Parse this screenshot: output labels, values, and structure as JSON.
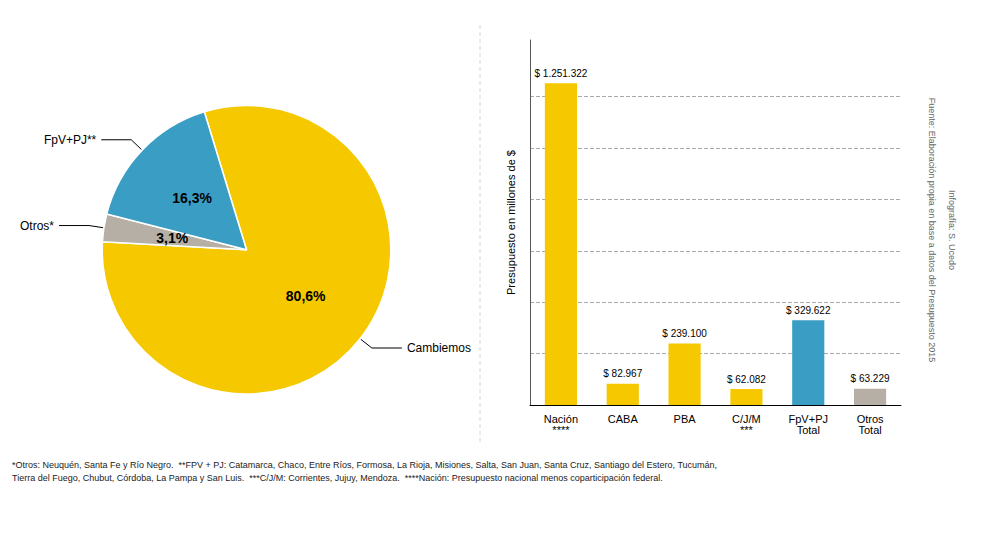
{
  "chart_data": [
    {
      "type": "pie",
      "labels": [
        "Cambiemos",
        "Otros*",
        "FpV+PJ**"
      ],
      "values": [
        80.6,
        3.1,
        16.3
      ],
      "value_labels": [
        "80,6%",
        "3,1%",
        "16,3%"
      ],
      "colors": [
        "#F5C800",
        "#B5AFA5",
        "#3A9DC4"
      ],
      "data_labels": true
    },
    {
      "type": "bar",
      "categories": [
        "Nación\n****",
        "CABA",
        "PBA",
        "C/J/M\n***",
        "FpV+PJ\nTotal",
        "Otros\nTotal"
      ],
      "values": [
        1251322,
        82967,
        239100,
        62082,
        329622,
        63229
      ],
      "value_labels": [
        "$ 1.251.322",
        "$ 82.967",
        "$ 239.100",
        "$ 62.082",
        "$ 329.622",
        "$ 63.229"
      ],
      "colors": [
        "#F5C800",
        "#F5C800",
        "#F5C800",
        "#F5C800",
        "#3A9DC4",
        "#B5AFA5"
      ],
      "ylabel": "Presupuesto en millones de $",
      "ylim": [
        0,
        1420000
      ],
      "yticks": [
        200000,
        400000,
        600000,
        800000,
        1000000,
        1200000
      ],
      "grid": true,
      "tick_labels": "x",
      "data_labels": true,
      "footnotes": [
        "*Otros: Neuquén, Santa Fe y Río Negro.  **FPV + PJ: Catamarca, Chaco, Entre Ríos, Formosa, La Rioja, Misiones, Salta, San Juan, Santa Cruz, Santiago del Estero, Tucumán,",
        "Tierra del Fuego, Chubut, Córdoba, La Pampa y San Luis.  ***C/J/M: Corrientes, Jujuy, Mendoza.  ****Nación: Presupuesto nacional menos coparticipación federal."
      ],
      "credits": [
        "Fuente: Elaboración propia en base a datos del Presupuesto 2015",
        "Infografía: S. Ucedo"
      ]
    }
  ]
}
